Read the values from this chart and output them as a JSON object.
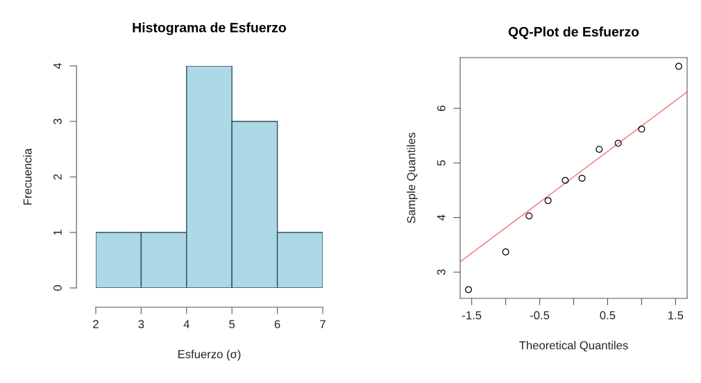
{
  "chart_data": [
    {
      "type": "histogram",
      "title": "Histograma de Esfuerzo",
      "xlabel": "Esfuerzo (σ)",
      "ylabel": "Frecuencia",
      "bins": [
        2,
        3,
        4,
        5,
        6,
        7
      ],
      "values": [
        1,
        1,
        4,
        3,
        1
      ],
      "color": "#add8e6",
      "xlim": [
        2,
        7
      ],
      "ylim": [
        0,
        4
      ],
      "xticks": [
        2,
        3,
        4,
        5,
        6,
        7
      ],
      "yticks": [
        0,
        1,
        2,
        3,
        4
      ],
      "grid": false
    },
    {
      "type": "scatter",
      "title": "QQ-Plot de Esfuerzo",
      "xlabel": "Theoretical Quantiles",
      "ylabel": "Sample Quantiles",
      "xlim": [
        -1.67,
        1.67
      ],
      "ylim": [
        2.52,
        6.93
      ],
      "xticks": [
        -1.5,
        {
          "value": -1,
          "label": null
        },
        -0.5,
        {
          "value": 0,
          "label": null
        },
        0.5,
        {
          "value": 1,
          "label": null
        },
        1.5
      ],
      "yticks": [
        3,
        4,
        5,
        6
      ],
      "grid": false,
      "series": [
        {
          "type": "scatter",
          "marker": "circle",
          "color": "#000000",
          "x": [
            -1.547,
            -1.0,
            -0.656,
            -0.376,
            -0.123,
            0.123,
            0.376,
            0.656,
            1.0,
            1.547
          ],
          "values": [
            2.68,
            3.37,
            4.03,
            4.31,
            4.68,
            4.72,
            5.25,
            5.36,
            5.62,
            6.77
          ]
        },
        {
          "type": "line",
          "color": "#f08080",
          "x": [
            -1.67,
            1.67
          ],
          "values": [
            3.19,
            6.3
          ],
          "line_style": "solid"
        }
      ]
    }
  ]
}
